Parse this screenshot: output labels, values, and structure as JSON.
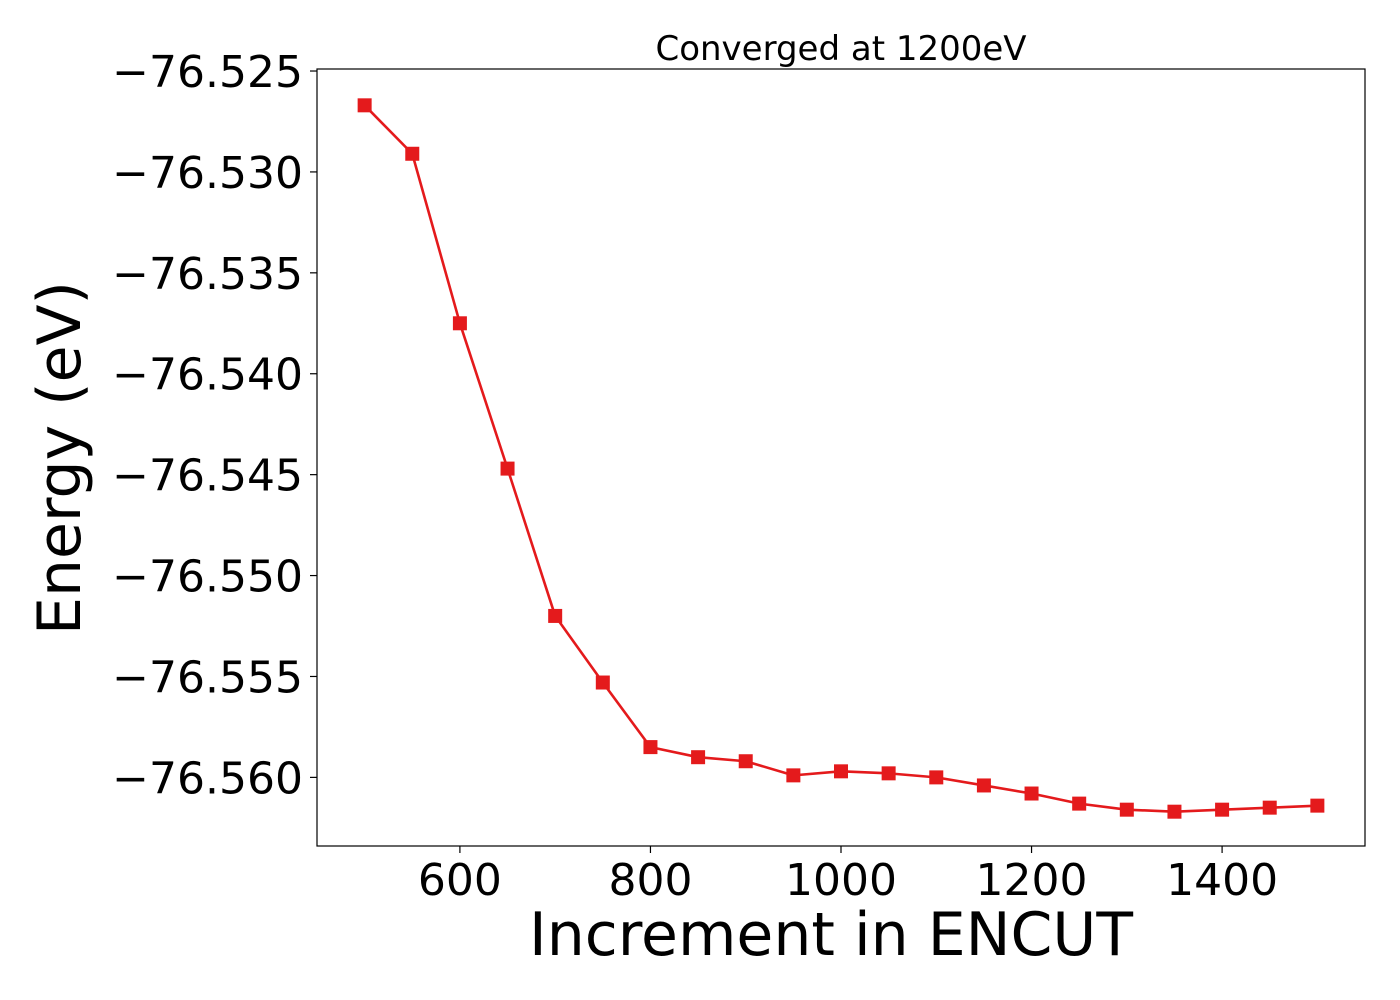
{
  "chart_data": {
    "type": "line",
    "title": "Converged at 1200eV",
    "xlabel": "Increment in ENCUT",
    "ylabel": "Energy (eV)",
    "xlim": [
      450,
      1550
    ],
    "ylim": [
      -76.5634,
      -76.5249
    ],
    "x_ticks": [
      600,
      800,
      1000,
      1200,
      1400
    ],
    "y_ticks": [
      -76.525,
      -76.53,
      -76.535,
      -76.54,
      -76.545,
      -76.55,
      -76.555,
      -76.56
    ],
    "x_tick_labels": [
      "600",
      "800",
      "1000",
      "1200",
      "1400"
    ],
    "y_tick_labels": [
      "−76.525",
      "−76.530",
      "−76.535",
      "−76.540",
      "−76.545",
      "−76.550",
      "−76.555",
      "−76.560"
    ],
    "grid": false,
    "series": [
      {
        "color": "#e41a1c",
        "marker": "square",
        "x": [
          500,
          550,
          600,
          650,
          700,
          750,
          800,
          850,
          900,
          950,
          1000,
          1050,
          1100,
          1150,
          1200,
          1250,
          1300,
          1350,
          1400,
          1450,
          1500
        ],
        "y": [
          -76.5267,
          -76.5291,
          -76.5375,
          -76.5447,
          -76.552,
          -76.5553,
          -76.5585,
          -76.559,
          -76.5592,
          -76.5599,
          -76.5597,
          -76.5598,
          -76.56,
          -76.5604,
          -76.5608,
          -76.5613,
          -76.5616,
          -76.5617,
          -76.5616,
          -76.5615,
          -76.5614
        ]
      }
    ]
  }
}
